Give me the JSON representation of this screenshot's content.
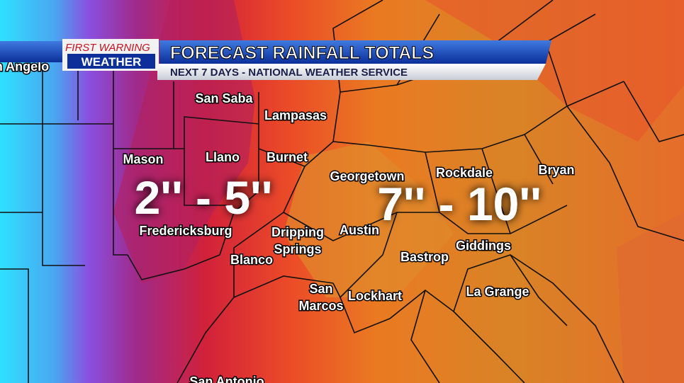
{
  "logo": {
    "line1": "FIRST WARNING",
    "line2": "WEATHER"
  },
  "header": {
    "title": "FORECAST RAINFALL TOTALS",
    "subtitle": "NEXT 7 DAYS - NATIONAL WEATHER SERVICE"
  },
  "cities": [
    {
      "lines": [
        "San Angelo"
      ]
    },
    {
      "lines": [
        "San Saba"
      ]
    },
    {
      "lines": [
        "Lampasas"
      ]
    },
    {
      "lines": [
        "Mason"
      ]
    },
    {
      "lines": [
        "Llano"
      ]
    },
    {
      "lines": [
        "Burnet"
      ]
    },
    {
      "lines": [
        "Georgetown"
      ]
    },
    {
      "lines": [
        "Rockdale"
      ]
    },
    {
      "lines": [
        "Bryan"
      ]
    },
    {
      "lines": [
        "Fredericksburg"
      ]
    },
    {
      "lines": [
        "Dripping",
        "Springs"
      ]
    },
    {
      "lines": [
        "Austin"
      ]
    },
    {
      "lines": [
        "Blanco"
      ]
    },
    {
      "lines": [
        "Bastrop"
      ]
    },
    {
      "lines": [
        "Giddings"
      ]
    },
    {
      "lines": [
        "San",
        "Marcos"
      ]
    },
    {
      "lines": [
        "Lockhart"
      ]
    },
    {
      "lines": [
        "La Grange"
      ]
    },
    {
      "lines": [
        "San Antonio"
      ]
    }
  ],
  "amounts": [
    "2'' - 5''",
    "7'' - 10''"
  ]
}
